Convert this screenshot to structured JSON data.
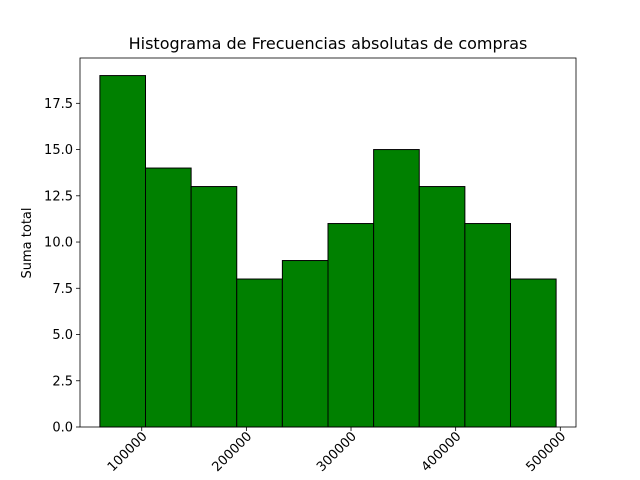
{
  "chart_data": {
    "type": "bar",
    "title": "Histograma de Frecuencias absolutas de compras",
    "xlabel": "",
    "ylabel": "Suma total",
    "bin_edges": [
      60000,
      103600,
      147200,
      190800,
      234400,
      278000,
      321600,
      365200,
      408800,
      452400,
      496000
    ],
    "values": [
      19,
      14,
      13,
      8,
      9,
      11,
      15,
      13,
      11,
      8
    ],
    "xlim": [
      41000,
      515000
    ],
    "ylim": [
      0,
      19.95
    ],
    "xticks": [
      100000,
      200000,
      300000,
      400000,
      500000
    ],
    "xtick_labels": [
      "100000",
      "200000",
      "300000",
      "400000",
      "500000"
    ],
    "yticks": [
      0,
      2.5,
      5,
      7.5,
      10,
      12.5,
      15,
      17.5
    ],
    "ytick_labels": [
      "0.0",
      "2.5",
      "5.0",
      "7.5",
      "10.0",
      "12.5",
      "15.0",
      "17.5"
    ],
    "bar_color": "#008000",
    "edge_color": "#000000",
    "grid": false
  }
}
